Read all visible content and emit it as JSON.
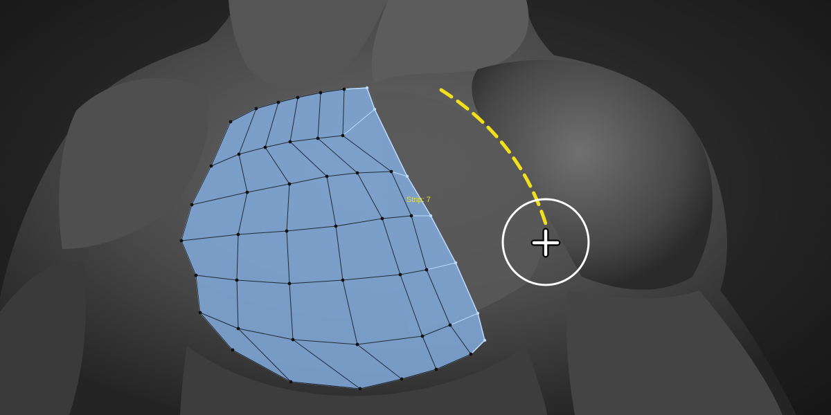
{
  "viewport": {
    "model": "muscular-torso-sculpt",
    "tool": "retopology-strip"
  },
  "overlay": {
    "strip_label": "Strip: 7",
    "guide_color": "#f2e01a",
    "mesh_fill": "#7fa8d8",
    "mesh_edge": "#bcdcff",
    "vertex_color": "#111111",
    "cursor_icon": "crosshair-brush-icon"
  }
}
